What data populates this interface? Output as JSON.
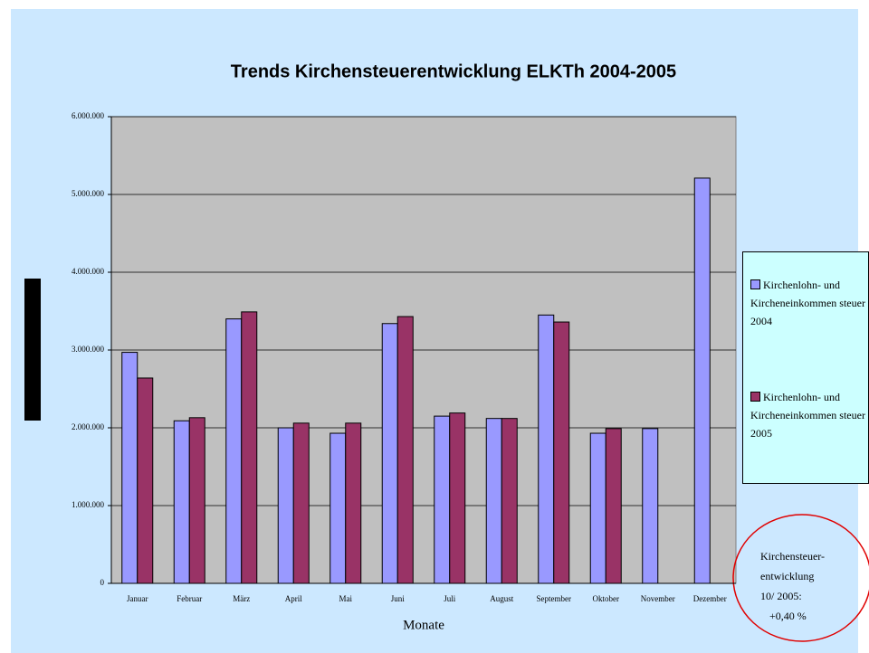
{
  "chart_data": {
    "type": "bar",
    "title": "Trends Kirchensteuerentwicklung ELKTh 2004-2005",
    "x_label": "Monate",
    "categories": [
      "Januar",
      "Februar",
      "März",
      "April",
      "Mai",
      "Juni",
      "Juli",
      "August",
      "September",
      "Oktober",
      "November",
      "Dezember"
    ],
    "series": [
      {
        "name": "Kirchenlohn- und Kircheneinkommen steuer 2004",
        "color": "#9999ff",
        "values": [
          2970000,
          2090000,
          3400000,
          2000000,
          1930000,
          3340000,
          2150000,
          2120000,
          3450000,
          1930000,
          1990000,
          5210000
        ]
      },
      {
        "name": "Kirchenlohn- und Kircheneinkommen steuer 2005",
        "color": "#993366",
        "values": [
          2640000,
          2130000,
          3490000,
          2060000,
          2060000,
          3430000,
          2190000,
          2120000,
          3360000,
          1990000,
          null,
          null
        ]
      }
    ],
    "ylim": [
      0,
      6000000
    ],
    "yticks": [
      0,
      {
        "value": 1000000,
        "label": "1.000.000"
      },
      {
        "value": 2000000,
        "label": "2.000.000"
      },
      {
        "value": 3000000,
        "label": "3.000.000"
      },
      {
        "value": 4000000,
        "label": "4.000.000"
      },
      {
        "value": 5000000,
        "label": "5.000.000"
      },
      {
        "value": 6000000,
        "label": "6.000.000"
      }
    ],
    "grid": true,
    "legend": "right",
    "annotation": [
      "Kirchensteuer-",
      "entwicklung",
      "10/ 2005:",
      "+0,40 %"
    ]
  }
}
